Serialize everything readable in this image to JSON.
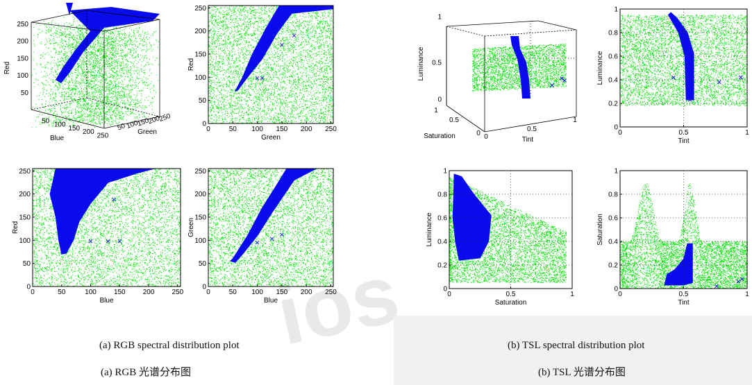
{
  "chart_data": [
    {
      "type": "scatter3d",
      "id": "rgb-3d",
      "xlabel": "Blue",
      "ylabel": "Green",
      "zlabel": "Red",
      "xticks": [
        50,
        100,
        150,
        200,
        250
      ],
      "yticks": [
        50,
        100,
        150,
        200,
        250
      ],
      "zticks": [
        50,
        100,
        150,
        200,
        250
      ],
      "xlim": [
        0,
        255
      ],
      "ylim": [
        0,
        255
      ],
      "zlim": [
        0,
        255
      ],
      "series": [
        {
          "color": "#00e600",
          "marker": "dot"
        },
        {
          "color": "#0000ee",
          "marker": "dot"
        }
      ]
    },
    {
      "type": "scatter",
      "id": "rgb-green-red",
      "xlabel": "Green",
      "ylabel": "Red",
      "xlim": [
        0,
        255
      ],
      "ylim": [
        0,
        255
      ],
      "xticks": [
        0,
        50,
        100,
        150,
        200,
        250
      ],
      "yticks": [
        0,
        50,
        100,
        150,
        200,
        250
      ],
      "series": [
        {
          "color": "#00e600",
          "marker": "dot"
        },
        {
          "color": "#0000ee",
          "marker": "dot"
        },
        {
          "color": "#0000ee",
          "marker": "x",
          "points": [
            [
              100,
              98
            ],
            [
              110,
              98
            ],
            [
              150,
              170
            ],
            [
              175,
              190
            ]
          ]
        }
      ]
    },
    {
      "type": "scatter",
      "id": "tsl-3d",
      "xlabel": "Tint",
      "ylabel": "Saturation",
      "zlabel": "Luminance",
      "xticks": [
        0,
        0.5,
        1
      ],
      "yticks": [
        0,
        0.5,
        1
      ],
      "zticks": [
        0,
        0.5,
        1
      ],
      "series": [
        {
          "color": "#00e600",
          "marker": "dot"
        },
        {
          "color": "#0000ee",
          "marker": "dot"
        }
      ]
    },
    {
      "type": "scatter",
      "id": "tsl-tint-lum",
      "xlabel": "Tint",
      "ylabel": "Luminance",
      "xlim": [
        0,
        1
      ],
      "ylim": [
        0,
        1
      ],
      "xticks": [
        0,
        0.5,
        1
      ],
      "yticks": [
        0,
        0.2,
        0.4,
        0.6,
        0.8,
        1
      ],
      "grid": true,
      "series": [
        {
          "color": "#00e600",
          "marker": "dot"
        },
        {
          "color": "#0000ee",
          "marker": "dot"
        },
        {
          "color": "#0000ee",
          "marker": "x",
          "points": [
            [
              0.42,
              0.42
            ],
            [
              0.55,
              0.23
            ],
            [
              0.78,
              0.38
            ],
            [
              0.95,
              0.42
            ]
          ]
        }
      ]
    },
    {
      "type": "scatter",
      "id": "rgb-blue-red",
      "xlabel": "Blue",
      "ylabel": "Red",
      "xlim": [
        0,
        255
      ],
      "ylim": [
        0,
        255
      ],
      "xticks": [
        0,
        50,
        100,
        150,
        200,
        250
      ],
      "yticks": [
        0,
        50,
        100,
        150,
        200,
        250
      ],
      "series": [
        {
          "color": "#00e600",
          "marker": "dot"
        },
        {
          "color": "#0000ee",
          "marker": "dot"
        },
        {
          "color": "#0000ee",
          "marker": "x",
          "points": [
            [
              100,
              98
            ],
            [
              130,
              98
            ],
            [
              150,
              98
            ],
            [
              140,
              188
            ]
          ]
        }
      ]
    },
    {
      "type": "scatter",
      "id": "rgb-blue-green",
      "xlabel": "Blue",
      "ylabel": "Green",
      "xlim": [
        0,
        255
      ],
      "ylim": [
        0,
        255
      ],
      "xticks": [
        0,
        50,
        100,
        150,
        200,
        250
      ],
      "yticks": [
        0,
        50,
        100,
        150,
        200,
        250
      ],
      "series": [
        {
          "color": "#00e600",
          "marker": "dot"
        },
        {
          "color": "#0000ee",
          "marker": "dot"
        },
        {
          "color": "#0000ee",
          "marker": "x",
          "points": [
            [
              100,
              95
            ],
            [
              130,
              103
            ],
            [
              150,
              112
            ]
          ]
        }
      ]
    },
    {
      "type": "scatter",
      "id": "tsl-sat-lum",
      "xlabel": "Saturation",
      "ylabel": "Luminance",
      "xlim": [
        0,
        1
      ],
      "ylim": [
        0,
        1
      ],
      "xticks": [
        0,
        0.5,
        1
      ],
      "yticks": [
        0,
        0.2,
        0.4,
        0.6,
        0.8,
        1
      ],
      "grid": true,
      "series": [
        {
          "color": "#00e600",
          "marker": "dot"
        },
        {
          "color": "#0000ee",
          "marker": "dot"
        }
      ]
    },
    {
      "type": "scatter",
      "id": "tsl-tint-sat",
      "xlabel": "Tint",
      "ylabel": "Saturation",
      "xlim": [
        0,
        1
      ],
      "ylim": [
        0,
        1
      ],
      "xticks": [
        0,
        0.5,
        1
      ],
      "yticks": [
        0,
        0.2,
        0.4,
        0.6,
        0.8,
        1
      ],
      "grid": true,
      "series": [
        {
          "color": "#00e600",
          "marker": "dot"
        },
        {
          "color": "#0000ee",
          "marker": "dot"
        },
        {
          "color": "#0000ee",
          "marker": "x",
          "points": [
            [
              0.76,
              0.02
            ],
            [
              0.93,
              0.06
            ],
            [
              0.96,
              0.08
            ]
          ]
        }
      ]
    }
  ],
  "captions": {
    "rgb_en": "(a) RGB spectral distribution plot",
    "rgb_zh": "(a) RGB 光谱分布图",
    "tsl_en": "(b) TSL spectral distribution plot",
    "tsl_zh": "(b) TSL 光谱分布图"
  },
  "watermark": "ios"
}
